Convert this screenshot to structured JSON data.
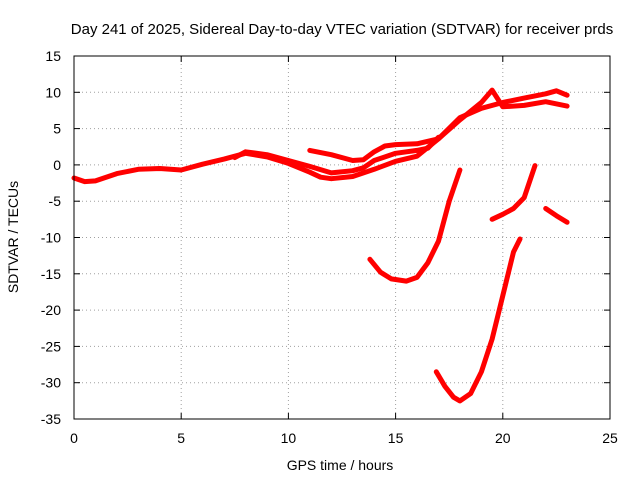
{
  "chart_data": {
    "type": "line",
    "title": "Day 241 of 2025, Sidereal Day-to-day VTEC variation (SDTVAR) for receiver prds",
    "xlabel": "GPS time / hours",
    "ylabel": "SDTVAR / TECUs",
    "xlim": [
      0,
      25
    ],
    "ylim": [
      -35,
      15
    ],
    "xticks": [
      0,
      5,
      10,
      15,
      20,
      25
    ],
    "yticks": [
      -35,
      -30,
      -25,
      -20,
      -15,
      -10,
      -5,
      0,
      5,
      10,
      15
    ],
    "grid": true,
    "legend": "none",
    "series_color": "#ff0000",
    "series": [
      {
        "name": "main-trace-a",
        "x": [
          0,
          0.5,
          1,
          2,
          3,
          4,
          5,
          6,
          7,
          8,
          9,
          10,
          10.5,
          11,
          11.5,
          12,
          13,
          14,
          15,
          16,
          17,
          18,
          19,
          20,
          21,
          22,
          22.5,
          23
        ],
        "y": [
          -1.8,
          -2.3,
          -2.2,
          -1.2,
          -0.6,
          -0.5,
          -0.7,
          0.1,
          0.8,
          1.6,
          1.1,
          0.2,
          -0.4,
          -1.0,
          -1.7,
          -1.9,
          -1.6,
          -0.6,
          0.5,
          1.2,
          3.6,
          6.5,
          7.8,
          8.6,
          9.2,
          9.8,
          10.2,
          9.6
        ]
      },
      {
        "name": "main-trace-b",
        "x": [
          7.5,
          8,
          9,
          10,
          11,
          12,
          13,
          13.5,
          14,
          15,
          16,
          16.5,
          17
        ],
        "y": [
          1.0,
          1.8,
          1.4,
          0.6,
          -0.2,
          -1.1,
          -0.8,
          -0.4,
          0.6,
          1.6,
          2.0,
          2.3,
          3.8
        ]
      },
      {
        "name": "main-trace-c",
        "x": [
          11,
          12,
          13,
          13.5,
          14,
          14.5,
          15,
          16,
          17,
          18,
          19,
          19.5,
          20,
          21,
          22,
          23
        ],
        "y": [
          2.0,
          1.4,
          0.6,
          0.7,
          1.8,
          2.6,
          2.8,
          2.9,
          3.6,
          6.2,
          8.6,
          10.3,
          8.0,
          8.2,
          8.7,
          8.1
        ]
      },
      {
        "name": "segment-15h",
        "x": [
          13.8,
          14.3,
          14.8,
          15.5,
          16,
          16.5,
          17,
          17.5,
          18
        ],
        "y": [
          -13.0,
          -14.8,
          -15.7,
          -16.0,
          -15.5,
          -13.5,
          -10.5,
          -5.0,
          -0.7
        ]
      },
      {
        "name": "segment-18h",
        "x": [
          16.9,
          17.3,
          17.7,
          18,
          18.5,
          19,
          19.5,
          20,
          20.5,
          20.8
        ],
        "y": [
          -28.5,
          -30.5,
          -32.0,
          -32.5,
          -31.5,
          -28.5,
          -24.0,
          -18.0,
          -12.0,
          -10.2
        ]
      },
      {
        "name": "segment-20h",
        "x": [
          19.5,
          20,
          20.5,
          21,
          21.5
        ],
        "y": [
          -7.5,
          -6.8,
          -6.0,
          -4.5,
          -0.1
        ]
      },
      {
        "name": "segment-22h",
        "x": [
          22,
          22.5,
          23
        ],
        "y": [
          -6.0,
          -7.0,
          -7.9
        ]
      }
    ]
  }
}
